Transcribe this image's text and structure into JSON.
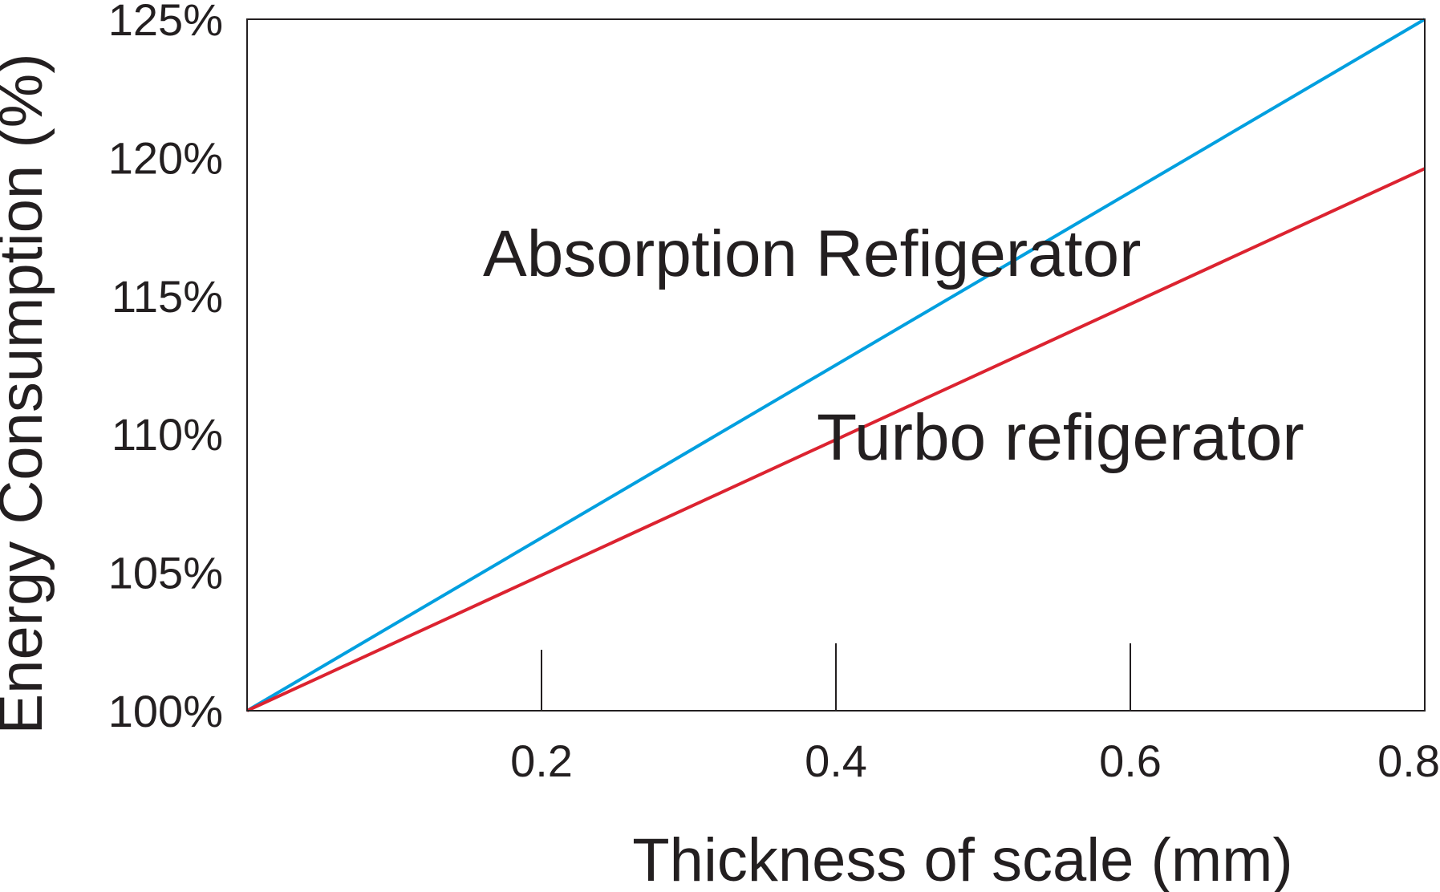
{
  "chart_data": {
    "type": "line",
    "title": "",
    "xlabel": "Thickness of scale (mm)",
    "ylabel": "Energy Consumption (%)",
    "xlim": [
      0,
      0.8
    ],
    "ylim": [
      100,
      125
    ],
    "x_ticks": [
      {
        "value": 0.2,
        "label": "0.2"
      },
      {
        "value": 0.4,
        "label": "0.4"
      },
      {
        "value": 0.6,
        "label": "0.6"
      },
      {
        "value": 0.8,
        "label": "0.8"
      }
    ],
    "y_ticks": [
      {
        "value": 100,
        "label": "100%"
      },
      {
        "value": 105,
        "label": "105%"
      },
      {
        "value": 110,
        "label": "110%"
      },
      {
        "value": 115,
        "label": "115%"
      },
      {
        "value": 120,
        "label": "120%"
      },
      {
        "value": 125,
        "label": "125%"
      }
    ],
    "grid": false,
    "legend": "none (series labelled inline on plot)",
    "series": [
      {
        "name": "Absorption Refigerator",
        "color": "#009fdf",
        "x": [
          0,
          0.8
        ],
        "y": [
          100,
          125
        ]
      },
      {
        "name": "Turbo refigerator",
        "color": "#dc2330",
        "x": [
          0,
          0.8
        ],
        "y": [
          100,
          119.6
        ]
      }
    ]
  }
}
